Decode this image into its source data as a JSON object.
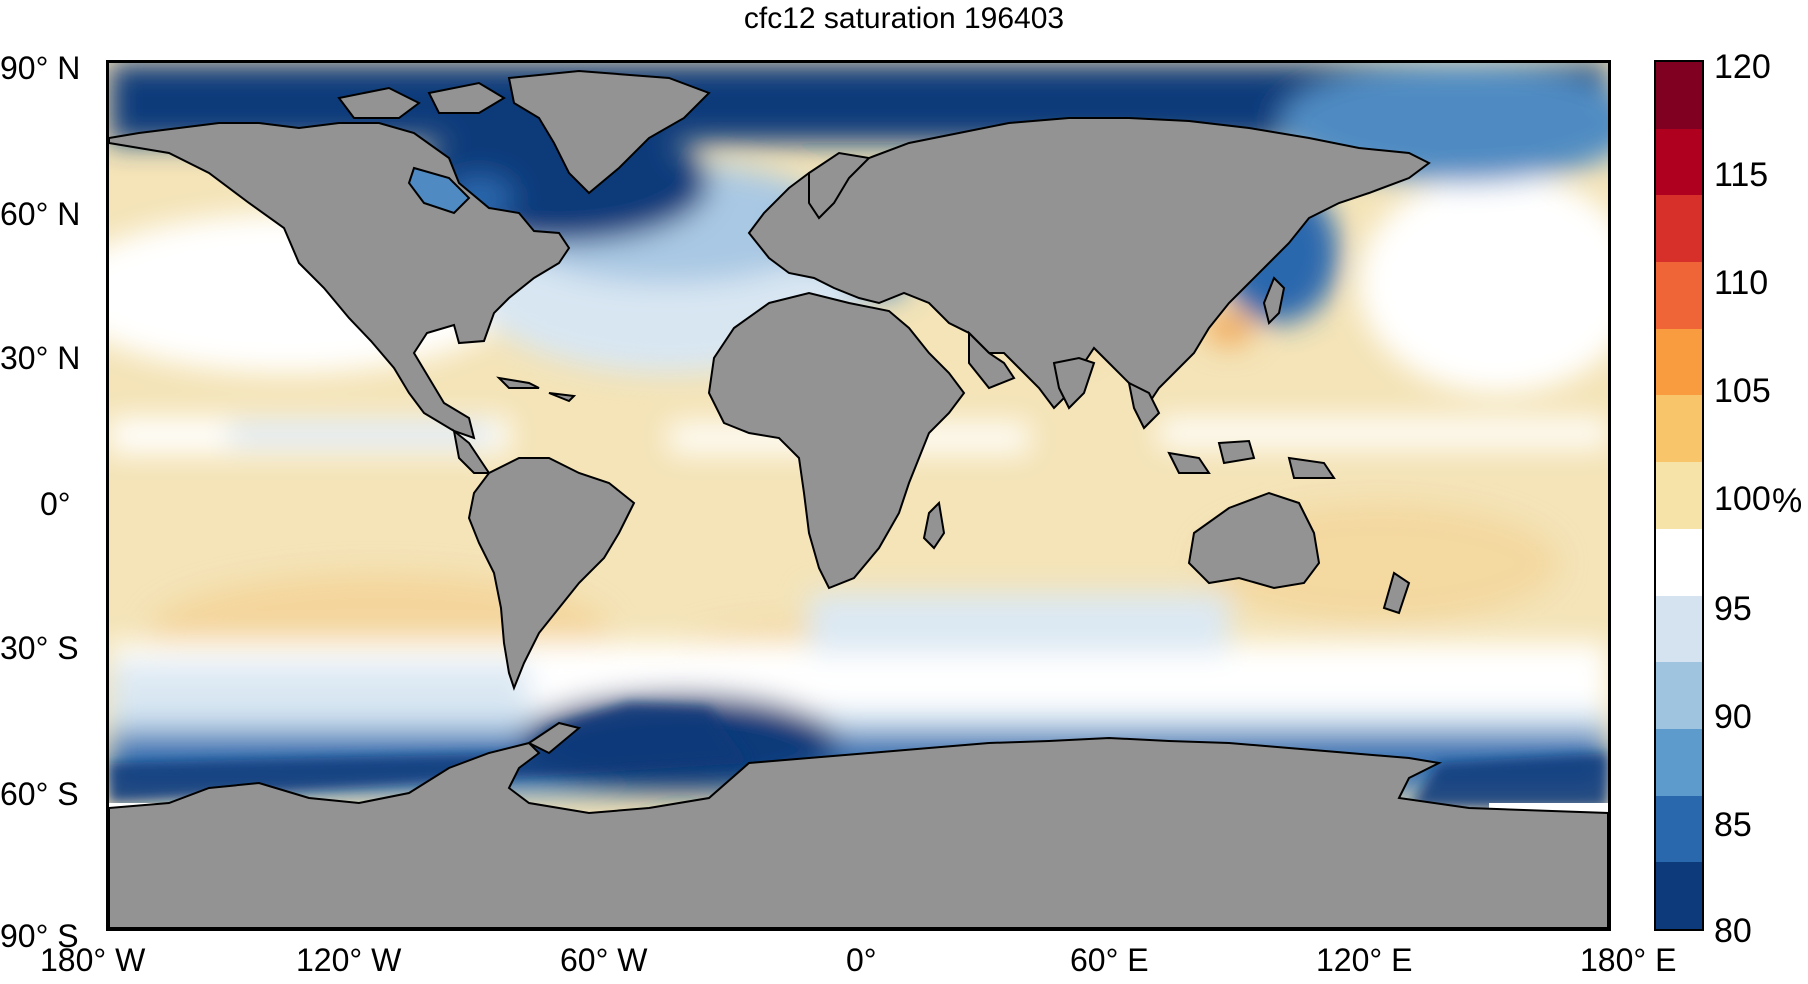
{
  "title": "cfc12 saturation 196403",
  "lat_labels": [
    "90° N",
    "60° N",
    "30° N",
    "0°",
    "30° S",
    "60° S",
    "90° S"
  ],
  "lon_labels": [
    "180° W",
    "120° W",
    "60° W",
    "0°",
    "60° E",
    "120° E",
    "180° E"
  ],
  "colorbar": {
    "ticks": [
      "120",
      "115",
      "110",
      "105",
      "100",
      "95",
      "90",
      "85",
      "80"
    ],
    "unit": "%",
    "range": [
      80,
      120
    ],
    "colors": [
      "#7f0020",
      "#b0001f",
      "#d7302b",
      "#ef6537",
      "#f89c3f",
      "#f9c56a",
      "#f6e3a8",
      "#ffffff",
      "#d5e3f0",
      "#9fc4e0",
      "#5d9bcc",
      "#2a68ad",
      "#0c3a7a"
    ]
  },
  "colors": {
    "land": "#939393",
    "deep_blue": "#0c3a7a",
    "mid_blue": "#4f8bc2",
    "light_blue": "#cfe0ef",
    "white": "#ffffff",
    "pale_yellow": "#f4e4b8",
    "orange": "#f2ad62"
  }
}
